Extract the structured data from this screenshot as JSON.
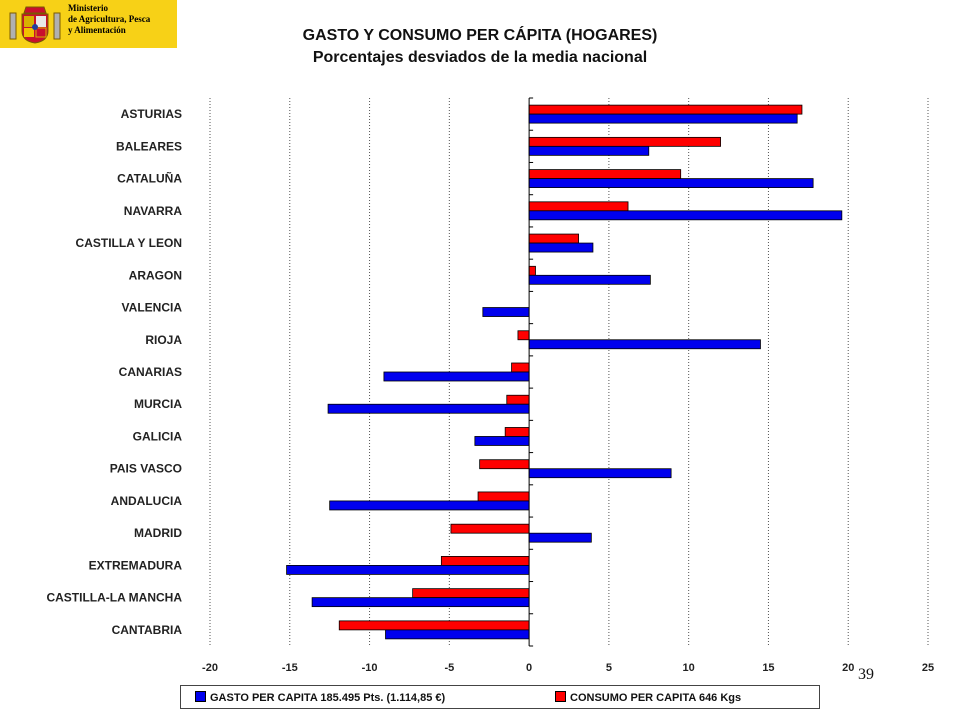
{
  "logo": {
    "ministry_text": "Ministerio\nde Agricultura, Pesca\ny Alimentación",
    "icon": "spanish-coat-of-arms-icon",
    "background_color": "#f7d117"
  },
  "page_number": "39",
  "chart_data": {
    "type": "bar",
    "orientation": "horizontal",
    "title": "GASTO Y CONSUMO PER CÁPITA (HOGARES)",
    "subtitle": "Porcentajes desviados de la media nacional",
    "categories": [
      "ASTURIAS",
      "BALEARES",
      "CATALUÑA",
      "NAVARRA",
      "CASTILLA  Y LEON",
      "ARAGON",
      "VALENCIA",
      "RIOJA",
      "CANARIAS",
      "MURCIA",
      "GALICIA",
      "PAIS VASCO",
      "ANDALUCIA",
      "MADRID",
      "EXTREMADURA",
      "CASTILLA-LA  MANCHA",
      "CANTABRIA"
    ],
    "series": [
      {
        "name": "CONSUMO  PER CAPITA  646 Kgs",
        "color": "#ff0000",
        "values": [
          17.1,
          12.0,
          9.5,
          6.2,
          3.1,
          0.4,
          0.0,
          -0.7,
          -1.1,
          -1.4,
          -1.5,
          -3.1,
          -3.2,
          -4.9,
          -5.5,
          -7.3,
          -11.9
        ]
      },
      {
        "name": "GASTO PER CAPITA  185.495 Pts. (1.114,85 €)",
        "color": "#0000ee",
        "values": [
          16.8,
          7.5,
          17.8,
          19.6,
          4.0,
          7.6,
          -2.9,
          14.5,
          -9.1,
          -12.6,
          -3.4,
          8.9,
          -12.5,
          3.9,
          -15.2,
          -13.6,
          -9.0
        ]
      }
    ],
    "xlim": [
      -20,
      25
    ],
    "xticks": [
      -20,
      -15,
      -10,
      -5,
      0,
      5,
      10,
      15,
      20,
      25
    ],
    "grid": "vertical dotted at major ticks",
    "legend_position": "bottom"
  }
}
